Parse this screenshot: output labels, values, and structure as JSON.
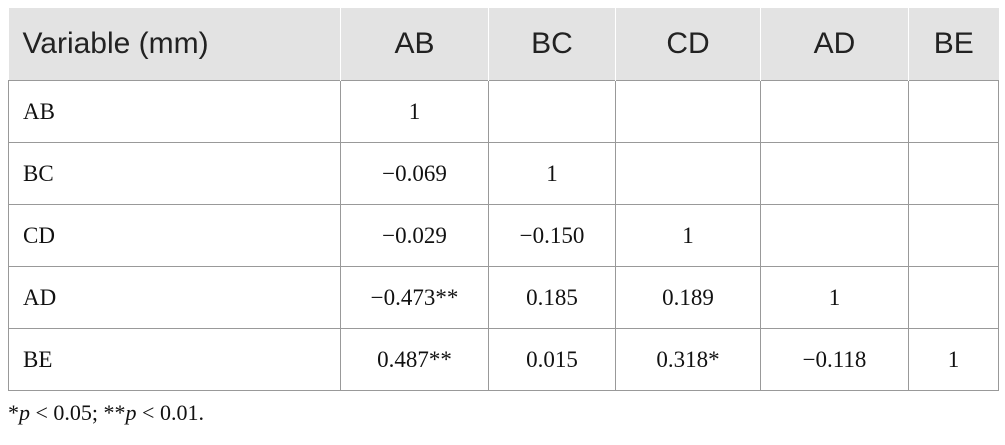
{
  "table": {
    "header": [
      "Variable (mm)",
      "AB",
      "BC",
      "CD",
      "AD",
      "BE"
    ],
    "rows": [
      [
        "AB",
        "1"
      ],
      [
        "BC",
        "−0.069",
        "1"
      ],
      [
        "CD",
        "−0.029",
        "−0.150",
        "1"
      ],
      [
        "AD",
        "−0.473**",
        "0.185",
        "0.189",
        "1"
      ],
      [
        "BE",
        "0.487**",
        "0.015",
        "0.318*",
        "−0.118",
        "1"
      ]
    ]
  },
  "footnote": [
    "*",
    "p",
    " < 0.05; **",
    "p",
    " < 0.01."
  ]
}
